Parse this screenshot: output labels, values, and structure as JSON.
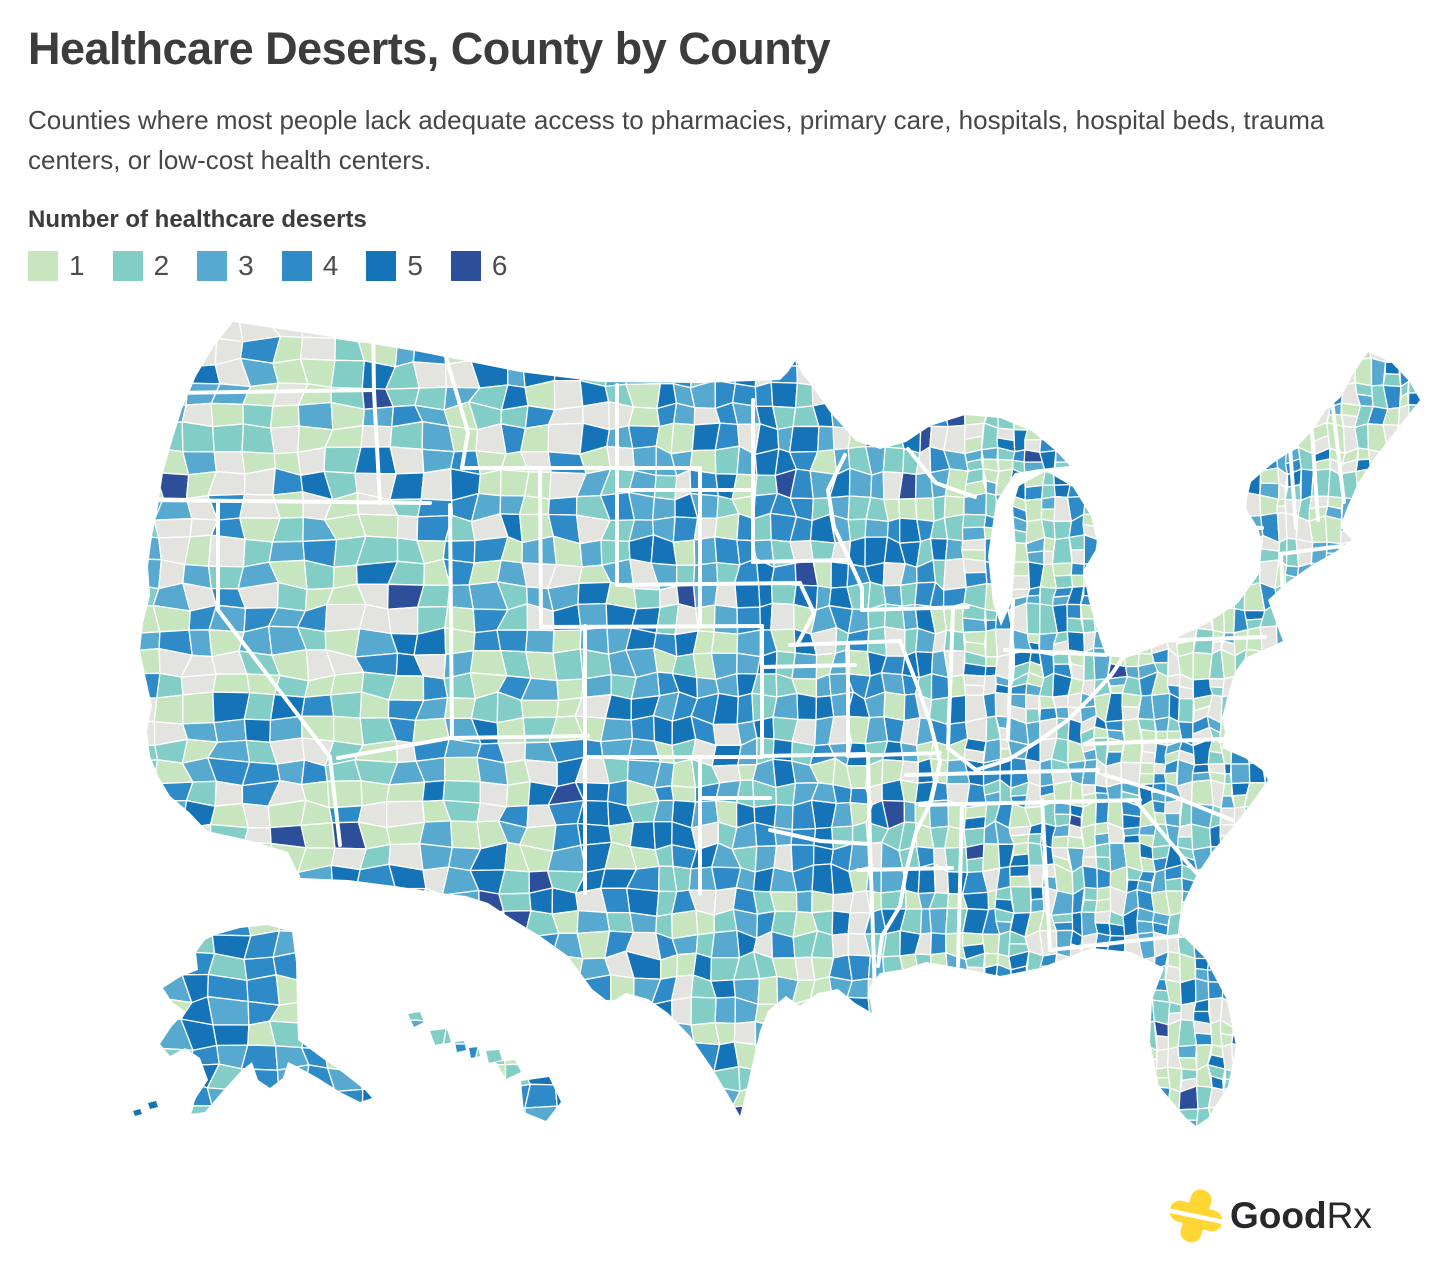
{
  "title": "Healthcare Deserts, County by County",
  "subtitle": "Counties where most people lack adequate access to pharmacies, primary care, hospitals, hospital beds, trauma centers, or low-cost health centers.",
  "legend": {
    "title": "Number of healthcare deserts",
    "items": [
      {
        "label": "1",
        "color": "#c7e5bf"
      },
      {
        "label": "2",
        "color": "#82cdc5"
      },
      {
        "label": "3",
        "color": "#58a9d0"
      },
      {
        "label": "4",
        "color": "#2e8bc7"
      },
      {
        "label": "5",
        "color": "#1573b8"
      },
      {
        "label": "6",
        "color": "#2d4f9a"
      }
    ]
  },
  "map": {
    "no_data_color": "#e3e3e0",
    "county_border_color": "#ffffff",
    "state_border_color": "#ffffff",
    "regions": [
      "Contiguous United States",
      "Alaska",
      "Hawaii"
    ]
  },
  "logo": {
    "text_good": "Good",
    "text_rx": "Rx",
    "cross_color": "#ffd633",
    "text_color": "#26282b"
  },
  "chart_data": {
    "type": "choropleth",
    "region": "United States, by county",
    "title": "Healthcare Deserts, County by County",
    "subtitle": "Counties where most people lack adequate access to pharmacies, primary care, hospitals, hospital beds, trauma centers, or low-cost health centers.",
    "legend_title": "Number of healthcare deserts",
    "classes": [
      {
        "value": 1,
        "color": "#c7e5bf"
      },
      {
        "value": 2,
        "color": "#82cdc5"
      },
      {
        "value": 3,
        "color": "#58a9d0"
      },
      {
        "value": 4,
        "color": "#2e8bc7"
      },
      {
        "value": 5,
        "color": "#1573b8"
      },
      {
        "value": 6,
        "color": "#2d4f9a"
      }
    ],
    "unclassified_color": "#e3e3e0",
    "legend_position": "top-left",
    "source_brand": "GoodRx"
  }
}
